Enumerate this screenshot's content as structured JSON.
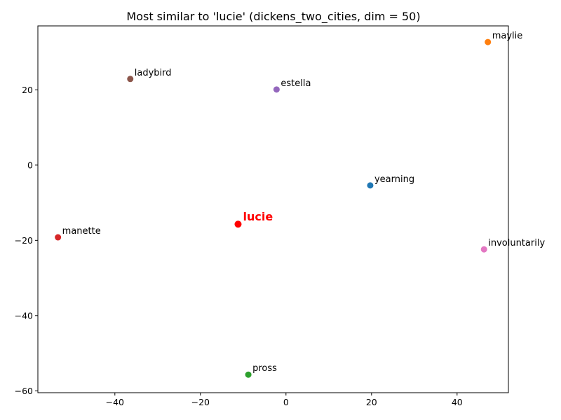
{
  "chart_data": {
    "type": "scatter",
    "title": "Most similar to 'lucie' (dickens_two_cities, dim = 50)",
    "xlabel": "",
    "ylabel": "",
    "xlim": [
      -58,
      52
    ],
    "ylim": [
      -60.5,
      37
    ],
    "xticks": [
      -40,
      -20,
      0,
      20,
      40
    ],
    "yticks": [
      -60,
      -40,
      -20,
      0,
      20
    ],
    "grid": false,
    "legend": "none",
    "query": {
      "label": "lucie",
      "x": -11.2,
      "y": -15.7,
      "color": "#ff0000"
    },
    "points": [
      {
        "label": "yearning",
        "x": 19.7,
        "y": -5.4,
        "color": "#1f77b4"
      },
      {
        "label": "maylie",
        "x": 47.2,
        "y": 32.7,
        "color": "#ff7f0e"
      },
      {
        "label": "pross",
        "x": -8.8,
        "y": -55.7,
        "color": "#2ca02c"
      },
      {
        "label": "manette",
        "x": -53.3,
        "y": -19.2,
        "color": "#d62728"
      },
      {
        "label": "estella",
        "x": -2.2,
        "y": 20.1,
        "color": "#9467bd"
      },
      {
        "label": "ladybird",
        "x": -36.4,
        "y": 22.9,
        "color": "#8c564b"
      },
      {
        "label": "involuntarily",
        "x": 46.3,
        "y": -22.4,
        "color": "#e377c2"
      }
    ]
  }
}
